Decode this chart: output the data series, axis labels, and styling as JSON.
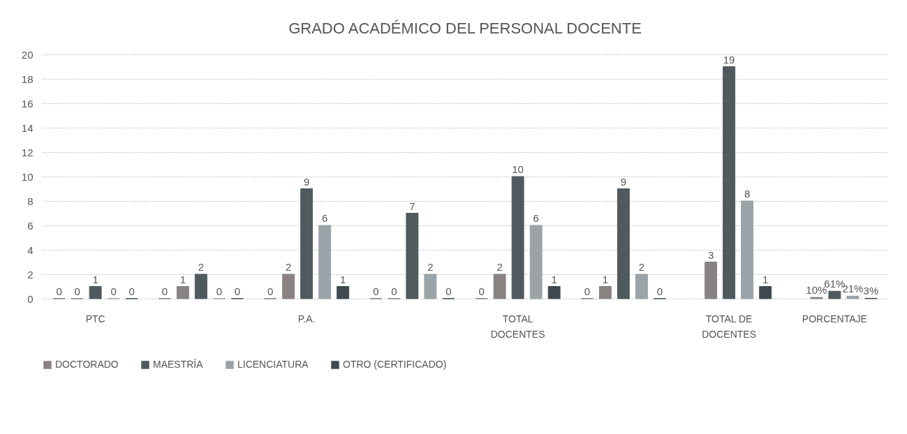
{
  "chart_data": {
    "type": "bar",
    "title": "GRADO ACADÉMICO DEL PERSONAL DOCENTE",
    "categories": [
      "PTC",
      null,
      "P.A.",
      null,
      "TOTAL DOCENTES",
      null,
      "TOTAL DE DOCENTES",
      "PORCENTAJE"
    ],
    "series": [
      {
        "color": "#7f7f7f",
        "values": [
          0,
          0,
          0,
          0,
          0,
          0,
          null,
          null
        ],
        "value_labels": [
          "0",
          "0",
          "0",
          "0",
          "0",
          "0",
          null,
          null
        ]
      },
      {
        "name": "DOCTORADO",
        "color": "#8a8282",
        "values": [
          0,
          1,
          2,
          0,
          2,
          1,
          3,
          0.1
        ],
        "value_labels": [
          "0",
          "1",
          "2",
          "0",
          "2",
          "1",
          "3",
          "10%"
        ]
      },
      {
        "name": "MAESTRÍA",
        "color": "#4f5a5e",
        "values": [
          1,
          2,
          9,
          7,
          10,
          9,
          19,
          0.61
        ],
        "value_labels": [
          "1",
          "2",
          "9",
          "7",
          "10",
          "9",
          "19",
          "61%"
        ]
      },
      {
        "name": "LICENCIATURA",
        "color": "#9aa3a8",
        "values": [
          0,
          0,
          6,
          2,
          6,
          2,
          8,
          0.21
        ],
        "value_labels": [
          "0",
          "0",
          "6",
          "2",
          "6",
          "2",
          "8",
          "21%"
        ]
      },
      {
        "name": "OTRO (CERTIFICADO)",
        "color": "#3e4a4f",
        "values": [
          0,
          0,
          1,
          0,
          1,
          0,
          1,
          0.03
        ],
        "value_labels": [
          "0",
          "0",
          "1",
          "0",
          "1",
          "0",
          "1",
          "3%"
        ]
      }
    ],
    "ylim": [
      0,
      20
    ],
    "yticks": [
      0,
      2,
      4,
      6,
      8,
      10,
      12,
      14,
      16,
      18,
      20
    ],
    "grid": true,
    "legend": "bottom"
  }
}
